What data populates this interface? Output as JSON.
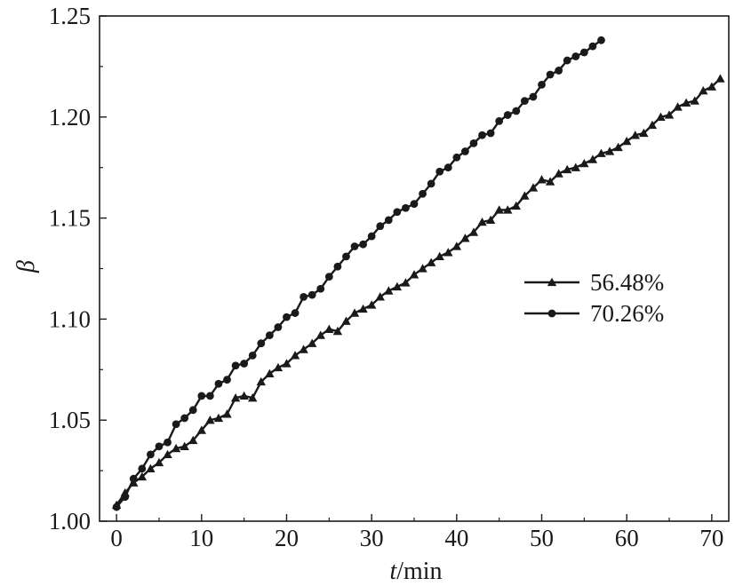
{
  "chart_data": {
    "type": "line",
    "title": "",
    "xlabel": {
      "italic": "t",
      "rest": "/min"
    },
    "ylabel": "β",
    "xlim": [
      -2,
      72
    ],
    "ylim": [
      1.0,
      1.25
    ],
    "x_ticks": [
      0,
      10,
      20,
      30,
      40,
      50,
      60,
      70
    ],
    "y_ticks": [
      1.0,
      1.05,
      1.1,
      1.15,
      1.2,
      1.25
    ],
    "y_tick_labels": [
      "1.00",
      "1.05",
      "1.10",
      "1.15",
      "1.20",
      "1.25"
    ],
    "grid": false,
    "legend_position": "right",
    "colors": {
      "line": "#1a1a1a",
      "axis": "#1a1a1a"
    },
    "series": [
      {
        "name": "56.48%",
        "marker": "triangle",
        "x": [
          0,
          1,
          2,
          3,
          4,
          5,
          6,
          7,
          8,
          9,
          10,
          11,
          12,
          13,
          14,
          15,
          16,
          17,
          18,
          19,
          20,
          21,
          22,
          23,
          24,
          25,
          26,
          27,
          28,
          29,
          30,
          31,
          32,
          33,
          34,
          35,
          36,
          37,
          38,
          39,
          40,
          41,
          42,
          43,
          44,
          45,
          46,
          47,
          48,
          49,
          50,
          51,
          52,
          53,
          54,
          55,
          56,
          57,
          58,
          59,
          60,
          61,
          62,
          63,
          64,
          65,
          66,
          67,
          68,
          69,
          70,
          71
        ],
        "values": [
          1.008,
          1.014,
          1.019,
          1.022,
          1.026,
          1.029,
          1.033,
          1.036,
          1.037,
          1.04,
          1.045,
          1.05,
          1.051,
          1.053,
          1.061,
          1.062,
          1.061,
          1.069,
          1.073,
          1.076,
          1.078,
          1.082,
          1.085,
          1.088,
          1.092,
          1.095,
          1.094,
          1.099,
          1.103,
          1.105,
          1.107,
          1.111,
          1.114,
          1.116,
          1.118,
          1.122,
          1.125,
          1.128,
          1.131,
          1.133,
          1.136,
          1.14,
          1.143,
          1.148,
          1.149,
          1.154,
          1.154,
          1.156,
          1.161,
          1.165,
          1.169,
          1.168,
          1.172,
          1.174,
          1.175,
          1.177,
          1.179,
          1.182,
          1.183,
          1.185,
          1.188,
          1.191,
          1.192,
          1.196,
          1.2,
          1.201,
          1.205,
          1.207,
          1.208,
          1.213,
          1.215,
          1.219
        ]
      },
      {
        "name": "70.26%",
        "marker": "circle",
        "x": [
          0,
          1,
          2,
          3,
          4,
          5,
          6,
          7,
          8,
          9,
          10,
          11,
          12,
          13,
          14,
          15,
          16,
          17,
          18,
          19,
          20,
          21,
          22,
          23,
          24,
          25,
          26,
          27,
          28,
          29,
          30,
          31,
          32,
          33,
          34,
          35,
          36,
          37,
          38,
          39,
          40,
          41,
          42,
          43,
          44,
          45,
          46,
          47,
          48,
          49,
          50,
          51,
          52,
          53,
          54,
          55,
          56,
          57
        ],
        "values": [
          1.007,
          1.012,
          1.021,
          1.026,
          1.033,
          1.037,
          1.039,
          1.048,
          1.051,
          1.055,
          1.062,
          1.062,
          1.068,
          1.07,
          1.077,
          1.078,
          1.082,
          1.088,
          1.092,
          1.096,
          1.101,
          1.103,
          1.111,
          1.112,
          1.115,
          1.121,
          1.126,
          1.131,
          1.136,
          1.137,
          1.141,
          1.146,
          1.149,
          1.153,
          1.155,
          1.157,
          1.162,
          1.167,
          1.173,
          1.175,
          1.18,
          1.183,
          1.187,
          1.191,
          1.192,
          1.198,
          1.201,
          1.203,
          1.208,
          1.21,
          1.216,
          1.221,
          1.223,
          1.228,
          1.23,
          1.232,
          1.235,
          1.238
        ]
      }
    ]
  }
}
